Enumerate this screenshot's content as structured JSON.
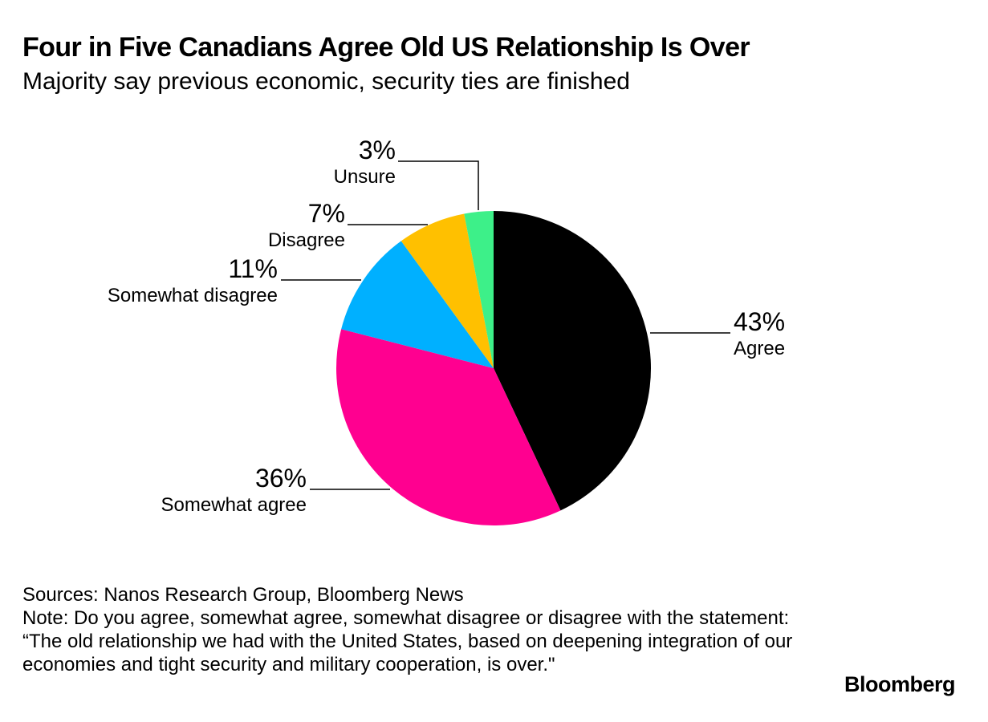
{
  "header": {
    "title": "Four in Five Canadians Agree Old US Relationship Is Over",
    "subtitle": "Majority say previous economic, security ties are finished"
  },
  "chart_data": {
    "type": "pie",
    "start_angle_deg": 0,
    "direction": "clockwise",
    "legend": "none",
    "slices": [
      {
        "label": "Agree",
        "value": 43,
        "value_label": "43%",
        "color": "#000000"
      },
      {
        "label": "Somewhat agree",
        "value": 36,
        "value_label": "36%",
        "color": "#FF0090"
      },
      {
        "label": "Somewhat disagree",
        "value": 11,
        "value_label": "11%",
        "color": "#00B0FF"
      },
      {
        "label": "Disagree",
        "value": 7,
        "value_label": "7%",
        "color": "#FFC000"
      },
      {
        "label": "Unsure",
        "value": 3,
        "value_label": "3%",
        "color": "#3DF089"
      }
    ]
  },
  "footer": {
    "sources": "Sources: Nanos Research Group, Bloomberg News",
    "note": "Note: Do you agree, somewhat agree, somewhat disagree or disagree with the statement: “The old relationship we had with the United States, based on deepening integration of our economies and tight security and military cooperation, is over.\""
  },
  "brand": {
    "logo_text": "Bloomberg"
  }
}
